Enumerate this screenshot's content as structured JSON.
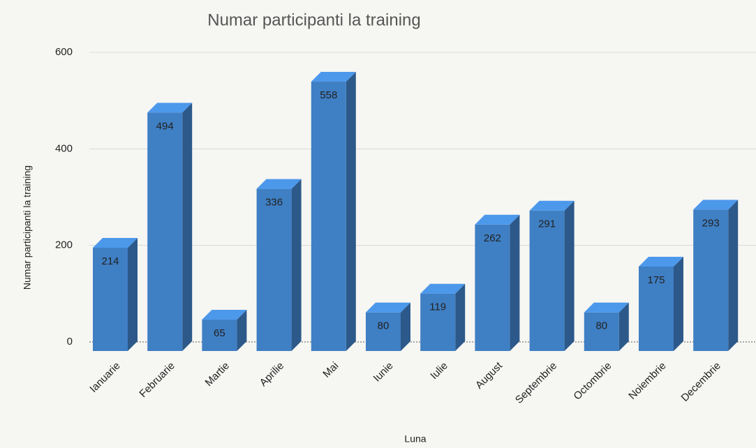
{
  "chart_data": {
    "type": "bar3d",
    "title": "Numar participanti la training",
    "x_label": "Luna",
    "y_label": "Numar participanti la training",
    "categories": [
      "Ianuarie",
      "Februarie",
      "Martie",
      "Aprilie",
      "Mai",
      "Iunie",
      "Iulie",
      "August",
      "Septembrie",
      "Octombrie",
      "Noiembrie",
      "Decembrie"
    ],
    "values": [
      214,
      494,
      65,
      336,
      558,
      80,
      119,
      262,
      291,
      80,
      175,
      293
    ],
    "color": "#3f7fc4",
    "ylim": [
      0,
      600
    ],
    "yticks": [
      0,
      200,
      400,
      600
    ],
    "grid": true
  }
}
